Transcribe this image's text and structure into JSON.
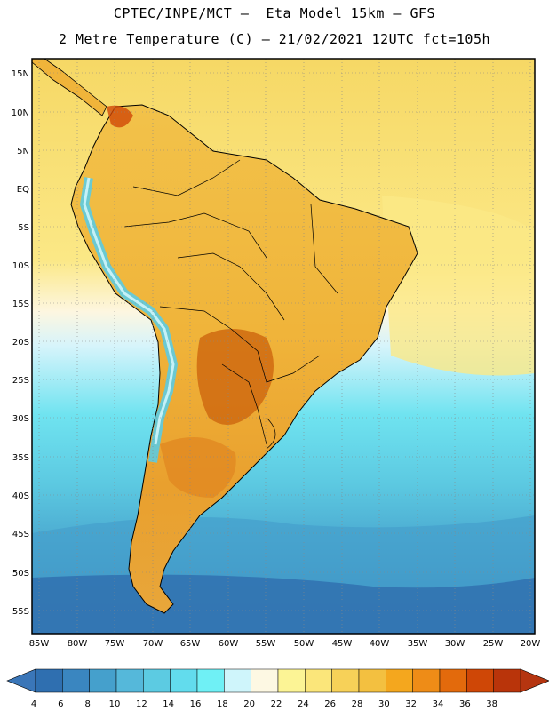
{
  "header": {
    "line1": "CPTEC/INPE/MCT –  Eta Model 15km – GFS",
    "line2": "2 Metre Temperature (C) – 21/02/2021 12UTC fct=105h"
  },
  "axes": {
    "lat_labels": [
      "15N",
      "10N",
      "5N",
      "EQ",
      "5S",
      "10S",
      "15S",
      "20S",
      "25S",
      "30S",
      "35S",
      "40S",
      "45S",
      "50S",
      "55S"
    ],
    "lon_labels": [
      "85W",
      "80W",
      "75W",
      "70W",
      "65W",
      "60W",
      "55W",
      "50W",
      "45W",
      "40W",
      "35W",
      "30W",
      "25W",
      "20W"
    ]
  },
  "colorbar": {
    "labels": [
      "4",
      "6",
      "8",
      "10",
      "12",
      "14",
      "16",
      "18",
      "20",
      "22",
      "24",
      "26",
      "28",
      "30",
      "32",
      "34",
      "36",
      "38"
    ],
    "colors": [
      "#2f6fb0",
      "#3a86c0",
      "#45a0cc",
      "#55b8da",
      "#5ccbe2",
      "#62dced",
      "#6ff0f5",
      "#cff5fb",
      "#fdf8e3",
      "#fcf495",
      "#fbe67a",
      "#f7d158",
      "#f3c040",
      "#f4a71e",
      "#ee8c17",
      "#e36a0c",
      "#cf4706",
      "#b9340a"
    ],
    "low_color": "#3a76b8",
    "high_color": "#b53510"
  }
}
